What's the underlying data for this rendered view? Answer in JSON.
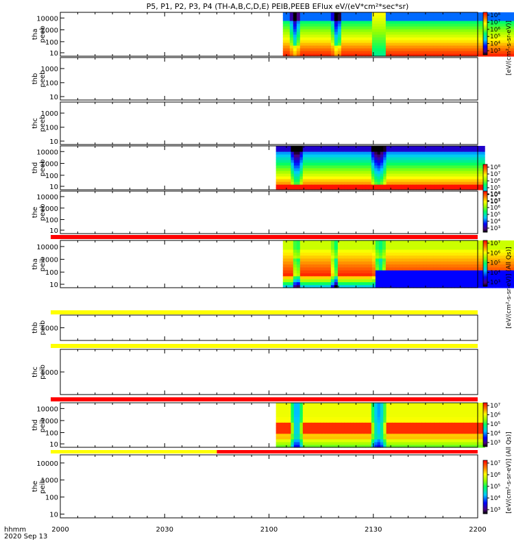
{
  "title": "P5, P1, P2, P3, P4 (TH-A,B,C,D,E) PEIB,PEEB EFlux eV/(eV*cm²*sec*sr)",
  "time_axis": {
    "unit_label": "hhmm",
    "date_label": "2020 Sep 13",
    "start": "2000",
    "end": "2200",
    "ticks": [
      "2000",
      "2030",
      "2100",
      "2130",
      "2200"
    ],
    "tick_minutes": [
      0,
      30,
      60,
      90,
      120
    ]
  },
  "colorbar_units": {
    "peeb": "[eV/(cm²-s-sr-eV)]",
    "peib": "[eV/(cm²-s-sr-eV)] (All Qs)]"
  },
  "chart_data": {
    "type": "heatmap",
    "x_range_minutes": [
      0,
      120
    ],
    "y_scale": "log",
    "panels": [
      {
        "id": "tha-peeb",
        "label": [
          "tha",
          "peeb"
        ],
        "yticks": [
          "10000",
          "1000",
          "100",
          "10"
        ],
        "ylim": [
          6,
          30000
        ],
        "coverage_minutes": [
          64,
          133
        ],
        "pattern": "electron",
        "gaps_minutes": [
          [
            66,
            69
          ],
          [
            78,
            81
          ],
          [
            90,
            94
          ]
        ],
        "colorbar": [
          "10⁸",
          "10⁷",
          "10⁶",
          "10⁵",
          "10⁴",
          "10³"
        ],
        "has_colorbar": true,
        "mode_bar_color": ""
      },
      {
        "id": "thb-peeb",
        "label": [
          "thb",
          "peeb"
        ],
        "yticks": [
          "1000",
          "100",
          "10"
        ],
        "ylim": [
          6,
          6000
        ],
        "coverage_minutes": null,
        "has_colorbar": false,
        "mode_bar_color": ""
      },
      {
        "id": "thc-peeb",
        "label": [
          "thc",
          "peeb"
        ],
        "yticks": [
          "1000",
          "100",
          "10"
        ],
        "ylim": [
          6,
          6000
        ],
        "coverage_minutes": null,
        "has_colorbar": false,
        "mode_bar_color": ""
      },
      {
        "id": "thd-peeb",
        "label": [
          "thd",
          "peeb"
        ],
        "yticks": [
          "10000",
          "1000",
          "100",
          "10"
        ],
        "ylim": [
          6,
          30000
        ],
        "coverage_minutes": [
          62,
          122
        ],
        "pattern": "electron2",
        "gaps_minutes": [
          [
            66,
            70
          ],
          [
            89,
            94
          ]
        ],
        "colorbar": [
          "10⁸",
          "10⁷",
          "10⁶",
          "10⁵",
          "10⁴",
          "10³"
        ],
        "has_colorbar": true,
        "mode_bar_color": ""
      },
      {
        "id": "the-peeb",
        "label": [
          "the",
          "peeb"
        ],
        "yticks": [
          "10000",
          "1000",
          "100",
          "10"
        ],
        "ylim": [
          6,
          30000
        ],
        "coverage_minutes": null,
        "colorbar": [
          "10⁸",
          "10⁷",
          "10⁶",
          "10⁵",
          "10⁴",
          "10³"
        ],
        "has_colorbar": true,
        "mode_bar_color": "#ff0000"
      },
      {
        "id": "tha-peib",
        "label": [
          "tha",
          "peib"
        ],
        "yticks": [
          "10000",
          "1000",
          "100",
          "10"
        ],
        "ylim": [
          6,
          30000
        ],
        "coverage_minutes": [
          64,
          133
        ],
        "pattern": "ion",
        "gaps_minutes": [
          [
            67,
            69
          ],
          [
            78,
            80
          ],
          [
            90,
            94
          ]
        ],
        "colorbar": [
          "10⁷",
          "10⁶",
          "10⁵",
          "10⁴",
          "10³"
        ],
        "has_colorbar": true,
        "mode_bar_color": "#ffff00"
      },
      {
        "id": "thb-peib",
        "label": [
          "thb",
          "peib"
        ],
        "yticks": [
          "1000"
        ],
        "ylim": [
          6,
          30000
        ],
        "coverage_minutes": null,
        "has_colorbar": false,
        "mode_bar_color": "#ffff00"
      },
      {
        "id": "thc-peib",
        "label": [
          "thc",
          "peib"
        ],
        "yticks": [
          "1000"
        ],
        "ylim": [
          6,
          30000
        ],
        "coverage_minutes": null,
        "has_colorbar": false,
        "mode_bar_color": "#ff0000"
      },
      {
        "id": "thd-peib",
        "label": [
          "thd",
          "peib"
        ],
        "yticks": [
          "10000",
          "1000",
          "100",
          "10"
        ],
        "ylim": [
          6,
          30000
        ],
        "coverage_minutes": [
          62,
          122
        ],
        "pattern": "ion2",
        "gaps_minutes": [
          [
            66,
            70
          ],
          [
            89,
            94
          ]
        ],
        "colorbar": [
          "10⁷",
          "10⁶",
          "10⁵",
          "10⁴",
          "10³"
        ],
        "has_colorbar": true,
        "mode_bar_color": "split"
      },
      {
        "id": "the-peib",
        "label": [
          "the",
          "peib"
        ],
        "yticks": [
          "10000",
          "1000",
          "100",
          "10"
        ],
        "ylim": [
          6,
          30000
        ],
        "coverage_minutes": null,
        "colorbar": [
          "10⁷",
          "10⁶",
          "10⁵",
          "10⁴",
          "10³"
        ],
        "has_colorbar": true,
        "mode_bar_color": ""
      }
    ]
  }
}
